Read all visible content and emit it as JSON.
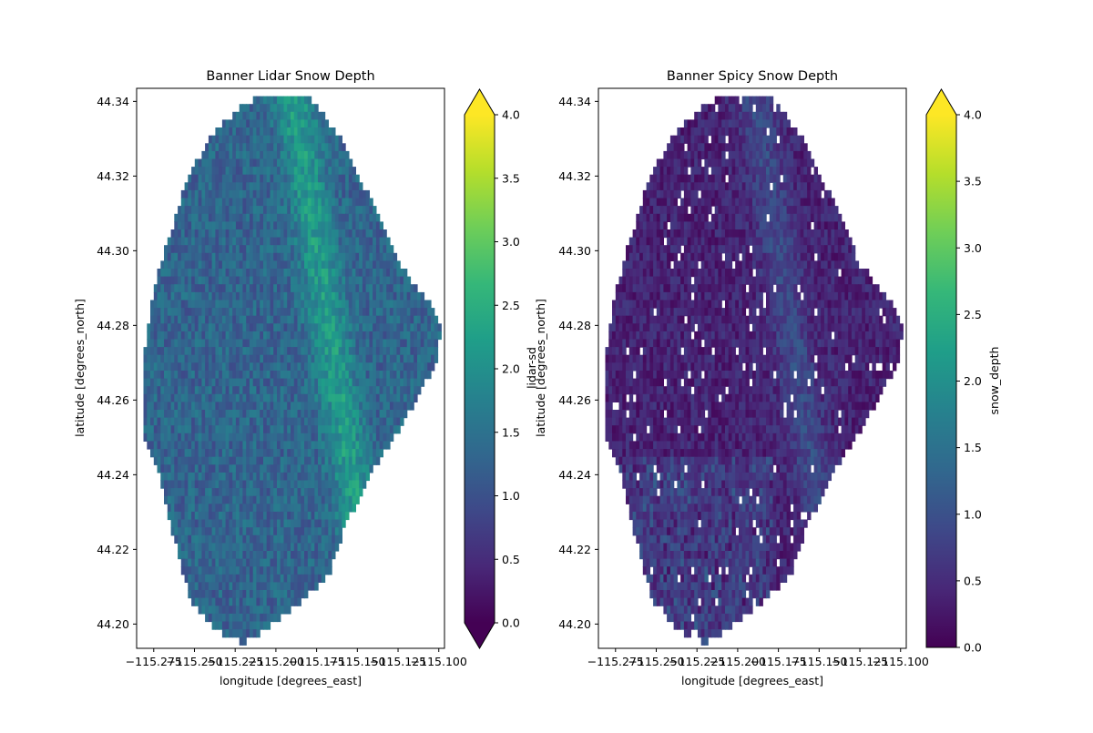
{
  "colors": {
    "viridis": [
      "#440154",
      "#482878",
      "#3e4989",
      "#31688e",
      "#26828e",
      "#1f9e89",
      "#35b779",
      "#6ece58",
      "#b5de2b",
      "#fde725"
    ],
    "axis": "#000000",
    "background": "#ffffff"
  },
  "chart_data": [
    {
      "type": "heatmap",
      "title": "Banner Lidar Snow Depth",
      "xlabel": "longitude [degrees_east]",
      "ylabel": "latitude [degrees_north]",
      "xlim": [
        -115.2855,
        -115.0965
      ],
      "ylim": [
        44.1935,
        44.3435
      ],
      "x_ticks": [
        -115.275,
        -115.25,
        -115.225,
        -115.2,
        -115.175,
        -115.15,
        -115.125,
        -115.1
      ],
      "x_tick_labels": [
        "−115.275",
        "−115.250",
        "−115.225",
        "−115.200",
        "−115.175",
        "−115.150",
        "−115.125",
        "−115.100"
      ],
      "y_ticks": [
        44.2,
        44.22,
        44.24,
        44.26,
        44.28,
        44.3,
        44.32,
        44.34
      ],
      "y_tick_labels": [
        "44.20",
        "44.22",
        "44.24",
        "44.26",
        "44.28",
        "44.30",
        "44.32",
        "44.34"
      ],
      "colorbar": {
        "label": "lidar-sd",
        "vmin": 0.0,
        "vmax": 4.0,
        "extend": "both",
        "ticks": [
          0.0,
          0.5,
          1.0,
          1.5,
          2.0,
          2.5,
          3.0,
          3.5,
          4.0
        ],
        "tick_labels": [
          "0.0",
          "0.5",
          "1.0",
          "1.5",
          "2.0",
          "2.5",
          "3.0",
          "3.5",
          "4.0"
        ],
        "colormap": "viridis"
      },
      "typical_value": 1.3
    },
    {
      "type": "heatmap",
      "title": "Banner Spicy Snow Depth",
      "xlabel": "longitude [degrees_east]",
      "ylabel": "latitude [degrees_north]",
      "xlim": [
        -115.2855,
        -115.0965
      ],
      "ylim": [
        44.1935,
        44.3435
      ],
      "x_ticks": [
        -115.275,
        -115.25,
        -115.225,
        -115.2,
        -115.175,
        -115.15,
        -115.125,
        -115.1
      ],
      "x_tick_labels": [
        "−115.275",
        "−115.250",
        "−115.225",
        "−115.200",
        "−115.175",
        "−115.150",
        "−115.125",
        "−115.100"
      ],
      "y_ticks": [
        44.2,
        44.22,
        44.24,
        44.26,
        44.28,
        44.3,
        44.32,
        44.34
      ],
      "y_tick_labels": [
        "44.20",
        "44.22",
        "44.24",
        "44.26",
        "44.28",
        "44.30",
        "44.32",
        "44.34"
      ],
      "colorbar": {
        "label": "snow_depth",
        "vmin": 0.0,
        "vmax": 4.0,
        "extend": "max",
        "ticks": [
          0.0,
          0.5,
          1.0,
          1.5,
          2.0,
          2.5,
          3.0,
          3.5,
          4.0
        ],
        "tick_labels": [
          "0.0",
          "0.5",
          "1.0",
          "1.5",
          "2.0",
          "2.5",
          "3.0",
          "3.5",
          "4.0"
        ],
        "colormap": "viridis"
      },
      "typical_value": 0.4
    }
  ]
}
